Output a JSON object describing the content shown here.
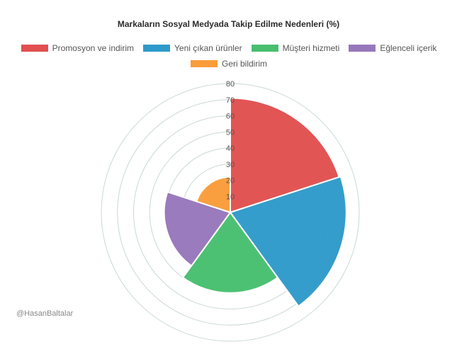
{
  "chart_data": {
    "type": "polar-area",
    "title": "Markaların Sosyal Medyada Takip Edilme Nedenleri (%)",
    "categories": [
      "Promosyon ve indirim",
      "Yeni çıkan ürünler",
      "Müşteri hizmeti",
      "Eğlenceli içerik",
      "Geri bildirim"
    ],
    "values": [
      71,
      72,
      50,
      41,
      22
    ],
    "colors": [
      "#e14f4f",
      "#2e9ac9",
      "#47bf6e",
      "#9777bb",
      "#f99c3a"
    ],
    "r_ticks": [
      "10",
      "20",
      "30",
      "40",
      "50",
      "60",
      "70",
      "80"
    ],
    "r_max": 80,
    "legend_position": "top"
  },
  "credit": "@HasanBaltalar"
}
